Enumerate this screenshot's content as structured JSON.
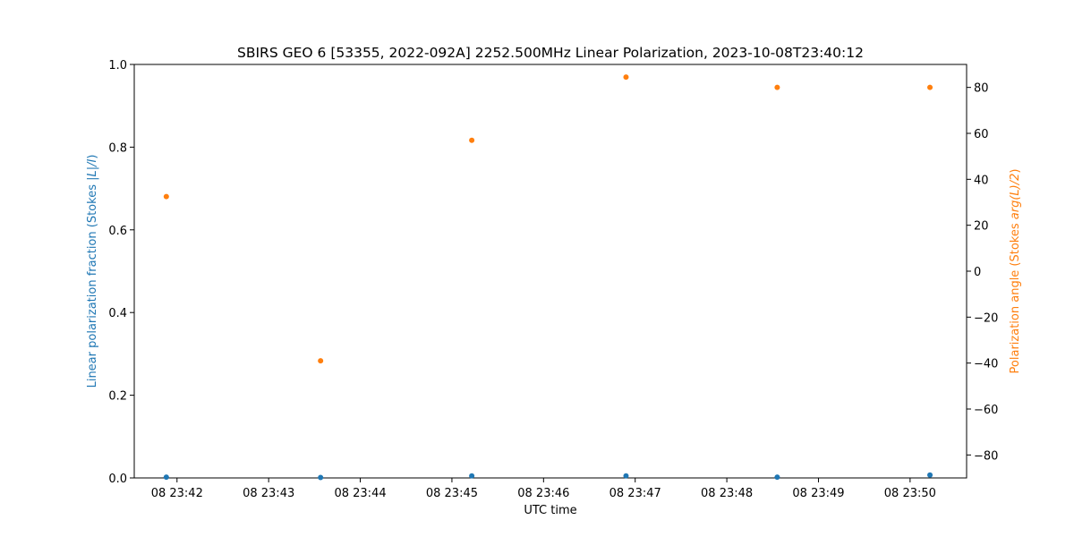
{
  "chart_data": {
    "type": "scatter",
    "title": "SBIRS GEO 6 [53355, 2022-092A] 2252.500MHz Linear Polarization, 2023-10-08T23:40:12",
    "xlabel": "UTC time",
    "ylabel_left_prefix": "Linear polarization fraction (Stokes ",
    "ylabel_left_math": "|L|/I",
    "ylabel_left_suffix": ")",
    "ylabel_right_prefix": "Polarization angle (Stokes ",
    "ylabel_right_math": "arg(L)/2",
    "ylabel_right_suffix": ")",
    "x_range": [
      "08 23:41:32",
      "08 23:50:37"
    ],
    "x_ticks": [
      "08 23:42",
      "08 23:43",
      "08 23:44",
      "08 23:45",
      "08 23:46",
      "08 23:47",
      "08 23:48",
      "08 23:49",
      "08 23:50"
    ],
    "y_left": {
      "lim": [
        0.0,
        1.0
      ],
      "ticks": [
        "0.0",
        "0.2",
        "0.4",
        "0.6",
        "0.8",
        "1.0"
      ]
    },
    "y_right": {
      "lim": [
        -90,
        90
      ],
      "ticks": [
        "−80",
        "−60",
        "−40",
        "−20",
        "0",
        "20",
        "40",
        "60",
        "80"
      ]
    },
    "grid": false,
    "series": [
      {
        "axis": "left",
        "color": "#1f77b4",
        "x": [
          "08 23:41:53",
          "08 23:43:34",
          "08 23:45:13",
          "08 23:46:54",
          "08 23:48:33",
          "08 23:50:13"
        ],
        "y": [
          0.002,
          0.001,
          0.005,
          0.005,
          0.002,
          0.007
        ]
      },
      {
        "axis": "right",
        "color": "#ff7f0e",
        "x": [
          "08 23:41:53",
          "08 23:43:34",
          "08 23:45:13",
          "08 23:46:54",
          "08 23:48:33",
          "08 23:50:13"
        ],
        "y": [
          32.5,
          -39.0,
          57.0,
          84.5,
          80.0,
          80.0
        ]
      }
    ]
  }
}
